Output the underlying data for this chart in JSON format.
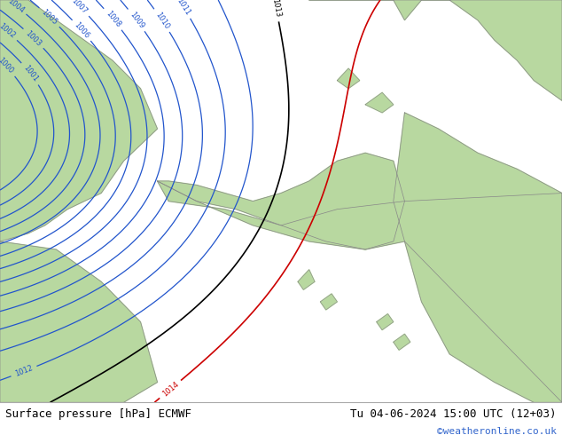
{
  "title_left": "Surface pressure [hPa] ECMWF",
  "title_right": "Tu 04-06-2024 15:00 UTC (12+03)",
  "copyright": "©weatheronline.co.uk",
  "bg_color": "#ccd5e0",
  "land_color": "#b8d8a0",
  "border_color": "#888888",
  "blue_contour_color": "#2255cc",
  "black_contour_color": "#000000",
  "red_contour_color": "#cc0000",
  "footer_bg": "#dde0ee",
  "footer_text_color": "#000000",
  "copyright_color": "#3366cc",
  "font_size_footer": 9,
  "font_size_labels": 6,
  "figsize": [
    6.34,
    4.9
  ],
  "dpi": 100
}
